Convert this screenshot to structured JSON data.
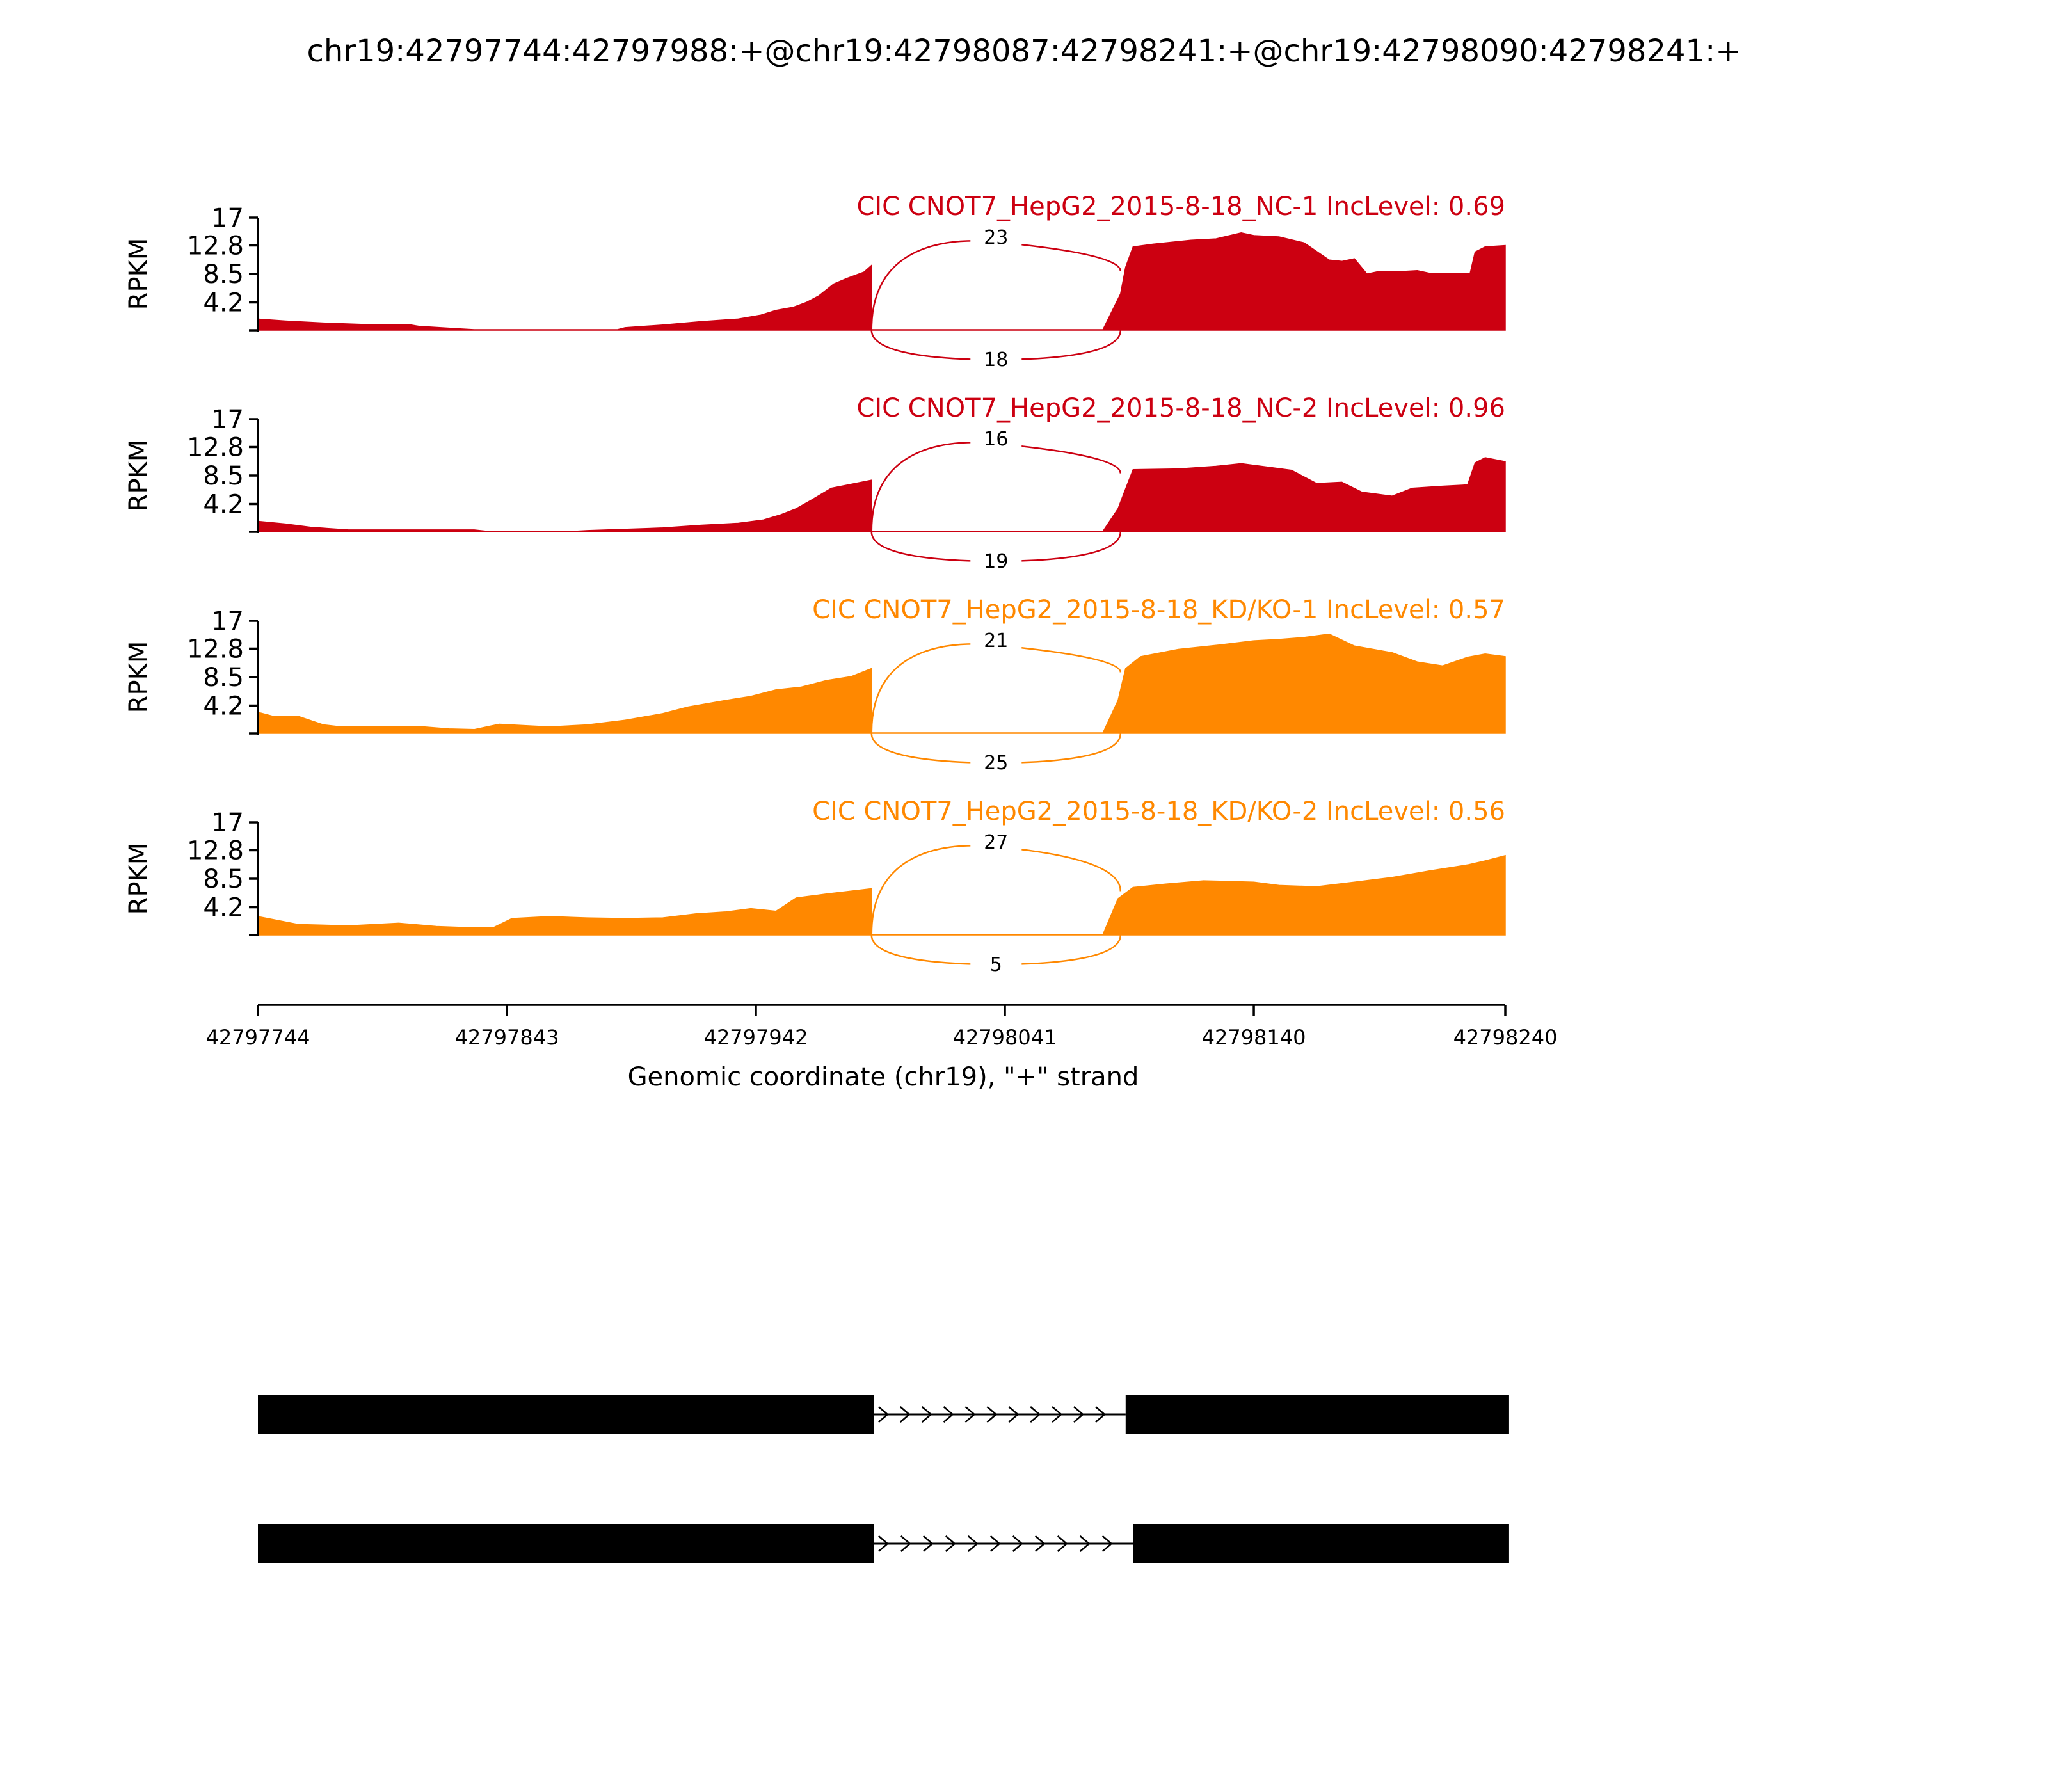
{
  "title": "chr19:42797744:42797988:+@chr19:42798087:42798241:+@chr19:42798090:42798241:+",
  "chart_data": {
    "type": "area",
    "ylabel": "RPKM",
    "xlabel": "Genomic coordinate (chr19), \"+\" strand",
    "ylim": [
      0,
      17
    ],
    "yticks": [
      "17",
      "12.8",
      "8.5",
      "4.2"
    ],
    "xlim": [
      42797744,
      42798240
    ],
    "xticks": [
      "42797744",
      "42797843",
      "42797942",
      "42798041",
      "42798140",
      "42798240"
    ],
    "intron": [
      42797988,
      42798087
    ],
    "tracks": [
      {
        "label": "CIC CNOT7_HepG2_2015-8-18_NC-1 IncLevel: 0.69",
        "color": "#CC0011",
        "junction_top": "23",
        "junction_bottom": "18",
        "profile": [
          [
            42797744,
            1.7
          ],
          [
            42797755,
            1.4
          ],
          [
            42797770,
            1.1
          ],
          [
            42797785,
            0.9
          ],
          [
            42797805,
            0.8
          ],
          [
            42797808,
            0.6
          ],
          [
            42797825,
            0.2
          ],
          [
            42797830,
            0.1
          ],
          [
            42797887,
            0.1
          ],
          [
            42797890,
            0.4
          ],
          [
            42797905,
            0.8
          ],
          [
            42797920,
            1.3
          ],
          [
            42797935,
            1.7
          ],
          [
            42797944,
            2.3
          ],
          [
            42797950,
            3.0
          ],
          [
            42797957,
            3.5
          ],
          [
            42797962,
            4.2
          ],
          [
            42797967,
            5.2
          ],
          [
            42797973,
            7.0
          ],
          [
            42797978,
            7.8
          ],
          [
            42797985,
            8.8
          ],
          [
            42797988,
            9.8
          ],
          [
            42797988,
            0.1
          ],
          [
            42798080,
            0.1
          ],
          [
            42798087,
            5.5
          ],
          [
            42798089,
            9.5
          ],
          [
            42798092,
            12.6
          ],
          [
            42798100,
            13.0
          ],
          [
            42798115,
            13.6
          ],
          [
            42798125,
            13.8
          ],
          [
            42798135,
            14.7
          ],
          [
            42798140,
            14.3
          ],
          [
            42798150,
            14.1
          ],
          [
            42798160,
            13.2
          ],
          [
            42798170,
            10.6
          ],
          [
            42798175,
            10.4
          ],
          [
            42798180,
            10.8
          ],
          [
            42798185,
            8.5
          ],
          [
            42798190,
            8.9
          ],
          [
            42798200,
            8.9
          ],
          [
            42798205,
            9.0
          ],
          [
            42798210,
            8.6
          ],
          [
            42798220,
            8.6
          ],
          [
            42798226,
            8.6
          ],
          [
            42798228,
            11.8
          ],
          [
            42798232,
            12.6
          ],
          [
            42798240,
            12.8
          ]
        ]
      },
      {
        "label": "CIC CNOT7_HepG2_2015-8-18_NC-2 IncLevel: 0.96",
        "color": "#CC0011",
        "junction_top": "16",
        "junction_bottom": "19",
        "profile": [
          [
            42797744,
            1.6
          ],
          [
            42797755,
            1.2
          ],
          [
            42797765,
            0.7
          ],
          [
            42797780,
            0.3
          ],
          [
            42797830,
            0.3
          ],
          [
            42797835,
            0.1
          ],
          [
            42797870,
            0.1
          ],
          [
            42797875,
            0.2
          ],
          [
            42797905,
            0.6
          ],
          [
            42797920,
            1.0
          ],
          [
            42797935,
            1.3
          ],
          [
            42797945,
            1.8
          ],
          [
            42797952,
            2.6
          ],
          [
            42797958,
            3.5
          ],
          [
            42797965,
            5.0
          ],
          [
            42797972,
            6.6
          ],
          [
            42797980,
            7.2
          ],
          [
            42797988,
            7.8
          ],
          [
            42797988,
            0.1
          ],
          [
            42798080,
            0.1
          ],
          [
            42798086,
            3.5
          ],
          [
            42798088,
            5.5
          ],
          [
            42798092,
            9.4
          ],
          [
            42798110,
            9.5
          ],
          [
            42798125,
            9.9
          ],
          [
            42798135,
            10.3
          ],
          [
            42798145,
            9.8
          ],
          [
            42798155,
            9.3
          ],
          [
            42798165,
            7.3
          ],
          [
            42798175,
            7.5
          ],
          [
            42798183,
            6.0
          ],
          [
            42798195,
            5.4
          ],
          [
            42798203,
            6.6
          ],
          [
            42798215,
            6.9
          ],
          [
            42798225,
            7.1
          ],
          [
            42798228,
            10.4
          ],
          [
            42798232,
            11.2
          ],
          [
            42798240,
            10.6
          ]
        ]
      },
      {
        "label": "CIC CNOT7_HepG2_2015-8-18_KD/KO-1 IncLevel: 0.57",
        "color": "#FF8800",
        "junction_top": "21",
        "junction_bottom": "25",
        "profile": [
          [
            42797744,
            3.2
          ],
          [
            42797750,
            2.6
          ],
          [
            42797760,
            2.6
          ],
          [
            42797770,
            1.3
          ],
          [
            42797777,
            1.0
          ],
          [
            42797810,
            1.0
          ],
          [
            42797820,
            0.7
          ],
          [
            42797830,
            0.6
          ],
          [
            42797835,
            1.0
          ],
          [
            42797840,
            1.4
          ],
          [
            42797850,
            1.2
          ],
          [
            42797860,
            1.0
          ],
          [
            42797875,
            1.3
          ],
          [
            42797890,
            2.0
          ],
          [
            42797905,
            3.0
          ],
          [
            42797915,
            4.0
          ],
          [
            42797930,
            5.0
          ],
          [
            42797940,
            5.6
          ],
          [
            42797950,
            6.6
          ],
          [
            42797960,
            7.0
          ],
          [
            42797970,
            8.0
          ],
          [
            42797980,
            8.6
          ],
          [
            42797988,
            9.8
          ],
          [
            42797988,
            0.1
          ],
          [
            42798080,
            0.1
          ],
          [
            42798086,
            5.0
          ],
          [
            42798089,
            9.8
          ],
          [
            42798095,
            11.6
          ],
          [
            42798110,
            12.7
          ],
          [
            42798125,
            13.3
          ],
          [
            42798140,
            14.0
          ],
          [
            42798150,
            14.2
          ],
          [
            42798160,
            14.5
          ],
          [
            42798170,
            15.0
          ],
          [
            42798180,
            13.2
          ],
          [
            42798195,
            12.2
          ],
          [
            42798205,
            10.8
          ],
          [
            42798215,
            10.2
          ],
          [
            42798225,
            11.5
          ],
          [
            42798232,
            12.0
          ],
          [
            42798240,
            11.6
          ]
        ]
      },
      {
        "label": "CIC CNOT7_HepG2_2015-8-18_KD/KO-2 IncLevel: 0.56",
        "color": "#FF8800",
        "junction_top": "27",
        "junction_bottom": "5",
        "profile": [
          [
            42797744,
            2.8
          ],
          [
            42797760,
            1.6
          ],
          [
            42797780,
            1.4
          ],
          [
            42797800,
            1.8
          ],
          [
            42797815,
            1.3
          ],
          [
            42797830,
            1.1
          ],
          [
            42797838,
            1.2
          ],
          [
            42797845,
            2.5
          ],
          [
            42797860,
            2.8
          ],
          [
            42797875,
            2.6
          ],
          [
            42797890,
            2.5
          ],
          [
            42797905,
            2.6
          ],
          [
            42797918,
            3.2
          ],
          [
            42797930,
            3.5
          ],
          [
            42797940,
            4.0
          ],
          [
            42797950,
            3.6
          ],
          [
            42797958,
            5.6
          ],
          [
            42797970,
            6.2
          ],
          [
            42797988,
            7.0
          ],
          [
            42797988,
            0.1
          ],
          [
            42798080,
            0.1
          ],
          [
            42798086,
            5.5
          ],
          [
            42798092,
            7.2
          ],
          [
            42798105,
            7.7
          ],
          [
            42798120,
            8.2
          ],
          [
            42798140,
            8.0
          ],
          [
            42798150,
            7.5
          ],
          [
            42798165,
            7.3
          ],
          [
            42798180,
            8.0
          ],
          [
            42798195,
            8.7
          ],
          [
            42798210,
            9.7
          ],
          [
            42798225,
            10.6
          ],
          [
            42798232,
            11.2
          ],
          [
            42798240,
            12.0
          ]
        ]
      }
    ],
    "transcripts": [
      {
        "exon1": [
          42797744,
          42797988
        ],
        "exon2": [
          42798087,
          42798241
        ]
      },
      {
        "exon1": [
          42797744,
          42797988
        ],
        "exon2": [
          42798090,
          42798241
        ]
      }
    ]
  }
}
